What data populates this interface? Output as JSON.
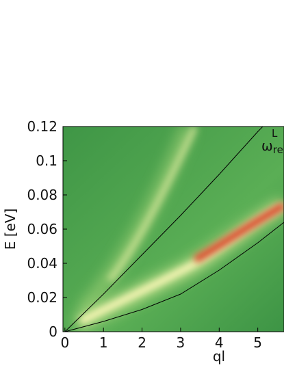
{
  "chart_data": {
    "type": "heatmap-lines",
    "xlabel": "ql",
    "ylabel": "E [eV]",
    "annotation": {
      "symbol": "ω",
      "subscript": "re",
      "superscript": "L"
    },
    "xlim": [
      -0.05,
      5.68
    ],
    "xticks": [
      0,
      1,
      2,
      3,
      4,
      5
    ],
    "ylim": [
      0,
      0.12
    ],
    "yticks": [
      0,
      0.02,
      0.04,
      0.06,
      0.08,
      0.1,
      0.12
    ],
    "curves": [
      {
        "color": "#000000",
        "x": [
          0,
          1,
          2,
          3,
          4,
          5,
          5.13
        ],
        "values": [
          0,
          0.022,
          0.045,
          0.068,
          0.092,
          0.117,
          0.12
        ]
      },
      {
        "color": "#000000",
        "x": [
          0,
          1,
          2,
          3,
          4,
          5,
          5.68
        ],
        "values": [
          0,
          0.006,
          0.013,
          0.022,
          0.036,
          0.052,
          0.064
        ]
      }
    ]
  }
}
